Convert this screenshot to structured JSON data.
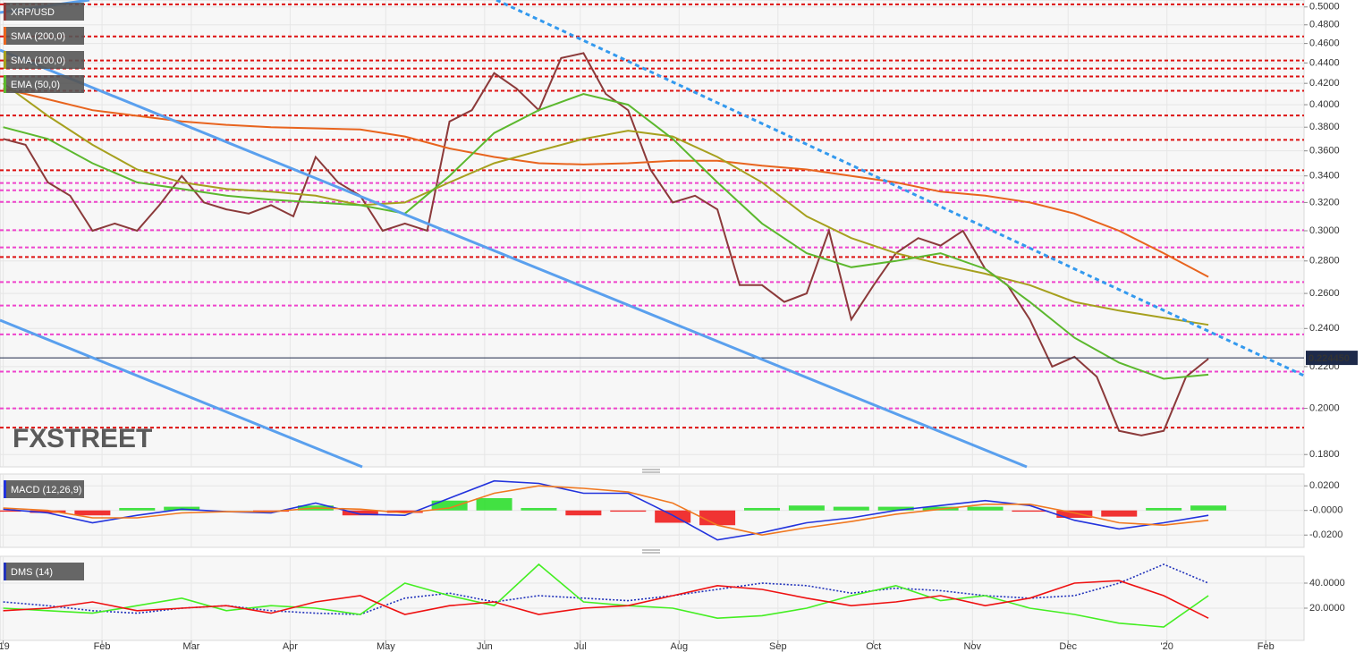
{
  "chart_data": [
    {
      "type": "line",
      "log_scale": true,
      "grid": true,
      "ylim": [
        0.175,
        0.508
      ],
      "yticks": [
        {
          "value": 0.18,
          "label": "0.1800"
        },
        {
          "value": 0.2,
          "label": "0.2000"
        },
        {
          "value": 0.22,
          "label": "0.2200"
        },
        {
          "value": 0.24,
          "label": "0.2400"
        },
        {
          "value": 0.26,
          "label": "0.2600"
        },
        {
          "value": 0.28,
          "label": "0.2800"
        },
        {
          "value": 0.3,
          "label": "0.3000"
        },
        {
          "value": 0.32,
          "label": "0.3200"
        },
        {
          "value": 0.34,
          "label": "0.3400"
        },
        {
          "value": 0.36,
          "label": "0.3600"
        },
        {
          "value": 0.38,
          "label": "0.3800"
        },
        {
          "value": 0.4,
          "label": "0.4000"
        },
        {
          "value": 0.42,
          "label": "0.4200"
        },
        {
          "value": 0.44,
          "label": "0.4400"
        },
        {
          "value": 0.46,
          "label": "0.4600"
        },
        {
          "value": 0.48,
          "label": "0.4800"
        },
        {
          "value": 0.5,
          "label": "0.5000"
        }
      ],
      "last_price": {
        "value": 0.22445,
        "label": "0.224450"
      },
      "watermark": [
        "FX",
        "STREET"
      ],
      "levels": [
        0.503,
        0.4675,
        0.4425,
        0.4344,
        0.4266,
        0.4129,
        0.3903,
        0.3692,
        0.3444,
        0.3345,
        0.329,
        0.3204,
        0.3004,
        0.2888,
        0.2825,
        0.2668,
        0.2529,
        0.2368,
        0.2175,
        0.2,
        0.1914
      ],
      "level_colors": [
        "#dd1111",
        "#dd1111",
        "#dd1111",
        "#dd1111",
        "#dd1111",
        "#dd1111",
        "#dd1111",
        "#dd1111",
        "#dd1111",
        "#ee44cc",
        "#ee44cc",
        "#ee44cc",
        "#ee44cc",
        "#ee44cc",
        "#dd1111",
        "#ee44cc",
        "#ee44cc",
        "#ee44cc",
        "#ee44cc",
        "#ee44cc",
        "#dd1111"
      ],
      "series": [
        {
          "name": "XRP/USD",
          "color": "#8b3a3a",
          "x": [
            0,
            7,
            14,
            21,
            28,
            35,
            42,
            49,
            56,
            63,
            70,
            77,
            84,
            91,
            98,
            105,
            112,
            119,
            126,
            133,
            140,
            147,
            154,
            161,
            168,
            175,
            182,
            189,
            196,
            203,
            210,
            217,
            224,
            231,
            238,
            245,
            252,
            259,
            266,
            273,
            280,
            287,
            294,
            301,
            308,
            315,
            322,
            329,
            336,
            343,
            350,
            357,
            364,
            371,
            378
          ],
          "values": [
            0.37,
            0.365,
            0.335,
            0.325,
            0.3,
            0.305,
            0.3,
            0.318,
            0.34,
            0.32,
            0.315,
            0.312,
            0.318,
            0.31,
            0.355,
            0.335,
            0.325,
            0.3,
            0.305,
            0.3,
            0.385,
            0.395,
            0.43,
            0.415,
            0.395,
            0.445,
            0.45,
            0.41,
            0.395,
            0.345,
            0.32,
            0.325,
            0.315,
            0.265,
            0.265,
            0.255,
            0.26,
            0.3,
            0.245,
            0.265,
            0.285,
            0.295,
            0.29,
            0.3,
            0.275,
            0.265,
            0.245,
            0.22,
            0.225,
            0.215,
            0.19,
            0.188,
            0.19,
            0.215,
            0.224
          ]
        },
        {
          "name": "SMA (200,0)",
          "color": "#e8641e",
          "x": [
            0,
            14,
            28,
            42,
            56,
            70,
            84,
            98,
            112,
            126,
            140,
            154,
            168,
            182,
            196,
            210,
            224,
            238,
            252,
            266,
            280,
            294,
            308,
            322,
            336,
            350,
            364,
            378
          ],
          "values": [
            0.415,
            0.405,
            0.395,
            0.39,
            0.385,
            0.382,
            0.38,
            0.379,
            0.378,
            0.372,
            0.362,
            0.355,
            0.35,
            0.349,
            0.35,
            0.352,
            0.352,
            0.348,
            0.345,
            0.34,
            0.335,
            0.328,
            0.325,
            0.32,
            0.312,
            0.3,
            0.285,
            0.27
          ]
        },
        {
          "name": "SMA (100,0)",
          "color": "#a6a01e",
          "x": [
            0,
            14,
            28,
            42,
            56,
            70,
            84,
            98,
            112,
            126,
            140,
            154,
            168,
            182,
            196,
            210,
            224,
            238,
            252,
            266,
            280,
            294,
            308,
            322,
            336,
            350,
            364,
            378
          ],
          "values": [
            0.42,
            0.39,
            0.365,
            0.345,
            0.335,
            0.33,
            0.328,
            0.325,
            0.318,
            0.32,
            0.335,
            0.35,
            0.36,
            0.37,
            0.377,
            0.372,
            0.355,
            0.335,
            0.31,
            0.295,
            0.285,
            0.278,
            0.272,
            0.265,
            0.255,
            0.25,
            0.246,
            0.242
          ]
        },
        {
          "name": "EMA (50,0)",
          "color": "#5cb82e",
          "x": [
            0,
            14,
            28,
            42,
            56,
            70,
            84,
            98,
            112,
            126,
            140,
            154,
            168,
            182,
            196,
            210,
            224,
            238,
            252,
            266,
            280,
            294,
            308,
            322,
            336,
            350,
            364,
            378
          ],
          "values": [
            0.38,
            0.37,
            0.35,
            0.335,
            0.33,
            0.325,
            0.322,
            0.32,
            0.318,
            0.312,
            0.34,
            0.375,
            0.395,
            0.41,
            0.4,
            0.37,
            0.335,
            0.305,
            0.285,
            0.276,
            0.28,
            0.285,
            0.275,
            0.255,
            0.235,
            0.222,
            0.214,
            0.216
          ]
        }
      ]
    },
    {
      "type": "macd",
      "title": "MACD (12,26,9)",
      "grid": true,
      "ylim": [
        -0.03,
        0.0296
      ],
      "yticks": [
        {
          "value": -0.02,
          "label": "-0.0200"
        },
        {
          "value": 0,
          "label": "-0.0000"
        },
        {
          "value": 0.02,
          "label": "0.0200"
        }
      ],
      "histogram": {
        "colors": [
          "#22dd22",
          "#ee1111"
        ],
        "x": [
          0,
          14,
          28,
          42,
          56,
          70,
          84,
          98,
          112,
          126,
          140,
          154,
          168,
          182,
          196,
          210,
          224,
          238,
          252,
          266,
          280,
          294,
          308,
          322,
          336,
          350,
          364,
          378
        ],
        "values": [
          -0.001,
          -0.002,
          -0.004,
          0.002,
          0.003,
          0,
          -0.001,
          0.004,
          -0.004,
          -0.002,
          0.008,
          0.01,
          0.002,
          -0.004,
          -0.001,
          -0.01,
          -0.012,
          0.002,
          0.004,
          0.003,
          0.003,
          0.003,
          0.003,
          -0.001,
          -0.006,
          -0.005,
          0.002,
          0.004
        ]
      },
      "series": [
        {
          "color": "#2233dd",
          "x": [
            0,
            14,
            28,
            42,
            56,
            70,
            84,
            98,
            112,
            126,
            140,
            154,
            168,
            182,
            196,
            210,
            224,
            238,
            252,
            266,
            280,
            294,
            308,
            322,
            336,
            350,
            364,
            378
          ],
          "values": [
            0.001,
            -0.002,
            -0.01,
            -0.004,
            0.001,
            -0.001,
            -0.002,
            0.006,
            -0.003,
            -0.004,
            0.01,
            0.024,
            0.022,
            0.014,
            0.014,
            -0.004,
            -0.024,
            -0.018,
            -0.01,
            -0.006,
            0,
            0.004,
            0.008,
            0.004,
            -0.008,
            -0.015,
            -0.01,
            -0.004
          ]
        },
        {
          "color": "#f07820",
          "x": [
            0,
            14,
            28,
            42,
            56,
            70,
            84,
            98,
            112,
            126,
            140,
            154,
            168,
            182,
            196,
            210,
            224,
            238,
            252,
            266,
            280,
            294,
            308,
            322,
            336,
            350,
            364,
            378
          ],
          "values": [
            0.002,
            0,
            -0.006,
            -0.006,
            -0.002,
            -0.001,
            -0.001,
            0.002,
            0.001,
            -0.002,
            0.002,
            0.014,
            0.02,
            0.018,
            0.015,
            0.006,
            -0.012,
            -0.02,
            -0.014,
            -0.009,
            -0.003,
            0.001,
            0.005,
            0.005,
            -0.002,
            -0.01,
            -0.012,
            -0.008
          ]
        }
      ]
    },
    {
      "type": "line",
      "title": "DMS (14)",
      "grid": true,
      "ylim": [
        -5.7,
        61.4
      ],
      "yticks": [
        {
          "value": 20,
          "label": "20.0000"
        },
        {
          "value": 40,
          "label": "40.0000"
        }
      ],
      "xlim": [
        -1,
        408
      ],
      "xticks": [
        {
          "value": 0,
          "label": "'19"
        },
        {
          "value": 31,
          "label": "Feb"
        },
        {
          "value": 59,
          "label": "Mar"
        },
        {
          "value": 90,
          "label": "Apr"
        },
        {
          "value": 120,
          "label": "May"
        },
        {
          "value": 151,
          "label": "Jun"
        },
        {
          "value": 181,
          "label": "Jul"
        },
        {
          "value": 212,
          "label": "Aug"
        },
        {
          "value": 243,
          "label": "Sep"
        },
        {
          "value": 273,
          "label": "Oct"
        },
        {
          "value": 304,
          "label": "Nov"
        },
        {
          "value": 334,
          "label": "Dec"
        },
        {
          "value": 365,
          "label": "'20"
        },
        {
          "value": 396,
          "label": "Feb"
        }
      ],
      "series": [
        {
          "color": "#2233bb",
          "dash": true,
          "x": [
            0,
            14,
            28,
            42,
            56,
            70,
            84,
            98,
            112,
            126,
            140,
            154,
            168,
            182,
            196,
            210,
            224,
            238,
            252,
            266,
            280,
            294,
            308,
            322,
            336,
            350,
            364,
            378
          ],
          "values": [
            25,
            22,
            18,
            16,
            20,
            22,
            18,
            16,
            15,
            28,
            32,
            25,
            30,
            28,
            26,
            30,
            35,
            40,
            38,
            32,
            36,
            34,
            30,
            28,
            30,
            40,
            55,
            40
          ]
        },
        {
          "color": "#44ee22",
          "x": [
            0,
            14,
            28,
            42,
            56,
            70,
            84,
            98,
            112,
            126,
            140,
            154,
            168,
            182,
            196,
            210,
            224,
            238,
            252,
            266,
            280,
            294,
            308,
            322,
            336,
            350,
            364,
            378
          ],
          "values": [
            20,
            18,
            16,
            22,
            28,
            18,
            22,
            20,
            15,
            40,
            30,
            22,
            55,
            25,
            22,
            20,
            12,
            14,
            20,
            30,
            38,
            26,
            30,
            20,
            15,
            8,
            5,
            30
          ]
        },
        {
          "color": "#ee1111",
          "x": [
            0,
            14,
            28,
            42,
            56,
            70,
            84,
            98,
            112,
            126,
            140,
            154,
            168,
            182,
            196,
            210,
            224,
            238,
            252,
            266,
            280,
            294,
            308,
            322,
            336,
            350,
            364,
            378
          ],
          "values": [
            18,
            20,
            25,
            18,
            20,
            22,
            16,
            25,
            30,
            15,
            22,
            25,
            15,
            20,
            22,
            30,
            38,
            35,
            28,
            22,
            25,
            30,
            22,
            28,
            40,
            42,
            30,
            12
          ]
        }
      ]
    }
  ]
}
